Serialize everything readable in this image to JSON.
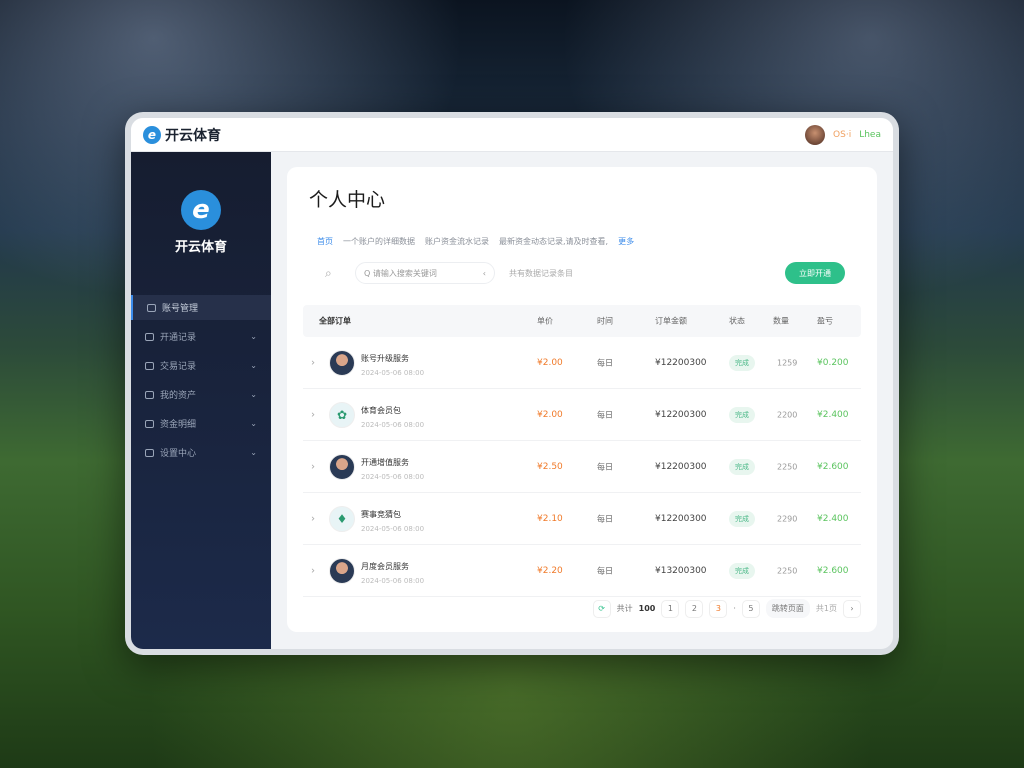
{
  "header": {
    "brand": "开云体育",
    "user_name": "ОS·i",
    "user_status": "Lhea"
  },
  "sidebar": {
    "brand": "开云体育",
    "items": [
      {
        "label": "账号管理",
        "active": true
      },
      {
        "label": "开通记录",
        "active": false
      },
      {
        "label": "交易记录",
        "active": false
      },
      {
        "label": "我的资产",
        "active": false
      },
      {
        "label": "资金明细",
        "active": false
      },
      {
        "label": "设置中心",
        "active": false
      }
    ]
  },
  "main": {
    "title": "个人中心",
    "crumbs": [
      "首页",
      "一个账户的详细数据",
      "账户资金流水记录",
      "最新资金动态记录,请及时查看,",
      "更多"
    ],
    "search_placeholder": "Q 请输入搜索关键词",
    "search_hint": "共有数据记录条目",
    "action_button": "立即开通",
    "columns": [
      "全部订单",
      "单价",
      "时间",
      "订单金额",
      "状态",
      "数量",
      "盈亏"
    ],
    "rows": [
      {
        "name": "账号升级服务",
        "sub": "2024-05-06 08:00",
        "price": "¥2.00",
        "unit": "每日",
        "amount": "¥12200300",
        "status": "完成",
        "count": "1259",
        "gain": "¥0.200",
        "avatar": "person"
      },
      {
        "name": "体育会员包",
        "sub": "2024-05-06 08:00",
        "price": "¥2.00",
        "unit": "每日",
        "amount": "¥12200300",
        "status": "完成",
        "count": "2200",
        "gain": "¥2.400",
        "avatar": "plant"
      },
      {
        "name": "开通增值服务",
        "sub": "2024-05-06 08:00",
        "price": "¥2.50",
        "unit": "每日",
        "amount": "¥12200300",
        "status": "完成",
        "count": "2250",
        "gain": "¥2.600",
        "avatar": "person"
      },
      {
        "name": "赛事竞猜包",
        "sub": "2024-05-06 08:00",
        "price": "¥2.10",
        "unit": "每日",
        "amount": "¥12200300",
        "status": "完成",
        "count": "2290",
        "gain": "¥2.400",
        "avatar": "badge"
      },
      {
        "name": "月度会员服务",
        "sub": "2024-05-06 08:00",
        "price": "¥2.20",
        "unit": "每日",
        "amount": "¥13200300",
        "status": "完成",
        "count": "2250",
        "gain": "¥2.600",
        "avatar": "person"
      }
    ]
  },
  "pagination": {
    "total_label": "共计",
    "total": "100",
    "pages": [
      "1",
      "2",
      "3"
    ],
    "ellipsis": "·",
    "last": "5",
    "jump_label": "跳转页面",
    "page_of": "共1页",
    "next": "›"
  },
  "colors": {
    "accent": "#2ec08a",
    "price": "#f07a2a",
    "gain": "#5bc45f",
    "sidebar": "#1a2238",
    "link": "#3b8bea"
  }
}
